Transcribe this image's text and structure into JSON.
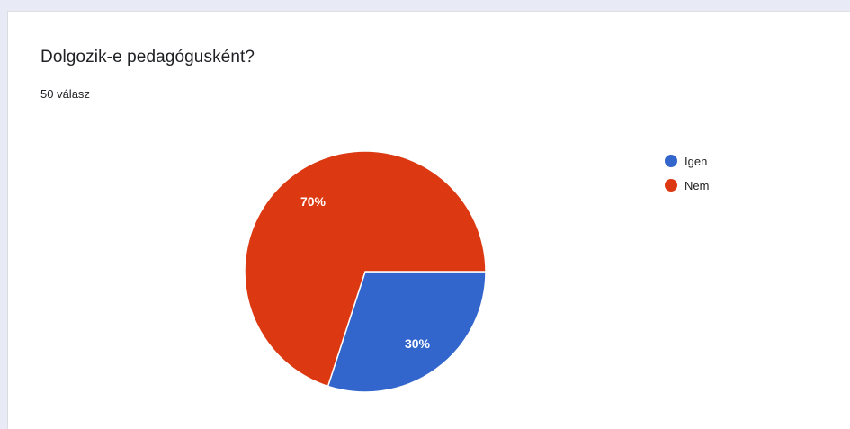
{
  "question": {
    "title": "Dolgozik-e pedagógusként?",
    "responses": "50 válasz"
  },
  "colors": {
    "igen": "#3366cc",
    "nem": "#dc3912"
  },
  "chart_data": {
    "type": "pie",
    "title": "Dolgozik-e pedagógusként?",
    "subtitle": "50 válasz",
    "legend_position": "right",
    "slices": [
      {
        "label": "Igen",
        "value": 30,
        "display": "30%",
        "color": "#3366cc"
      },
      {
        "label": "Nem",
        "value": 70,
        "display": "70%",
        "color": "#dc3912"
      }
    ]
  }
}
